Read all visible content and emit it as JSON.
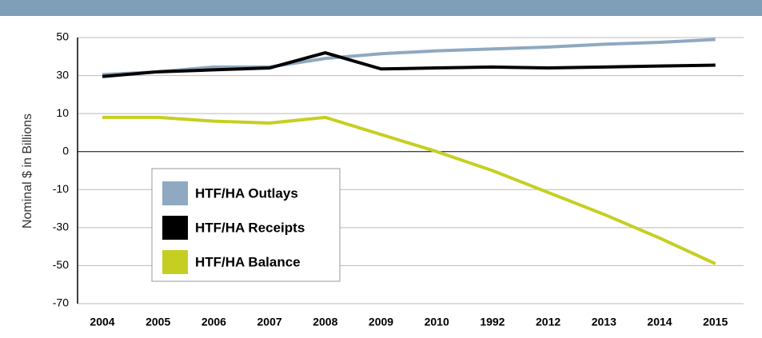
{
  "chart_data": {
    "type": "line",
    "y_label": "Nominal $ in Billions",
    "categories": [
      "2004",
      "2005",
      "2006",
      "2007",
      "2008",
      "2009",
      "2010",
      "1992",
      "2012",
      "2013",
      "2014",
      "2015"
    ],
    "series": [
      {
        "name": "HTF/HA Outlays",
        "color": "#8ea9c1",
        "values": [
          30.5,
          32,
          34.5,
          34.5,
          39,
          41.5,
          43,
          44,
          45,
          46.5,
          47.5,
          49
        ]
      },
      {
        "name": "HTF/HA Receipts",
        "color": "#000000",
        "values": [
          29.5,
          32,
          33,
          34,
          42,
          33.5,
          34,
          34.5,
          34,
          34.5,
          35,
          35.5
        ]
      },
      {
        "name": "HTF/HA Balance",
        "color": "#c5cf22",
        "values": [
          9,
          9,
          8,
          7.5,
          9,
          4.5,
          0,
          -5,
          -11.5,
          -23,
          -35.5,
          -49
        ]
      }
    ],
    "ylim": [
      -70,
      50
    ],
    "yticks": [
      50,
      30,
      10,
      0,
      -10,
      -30,
      -50,
      -70
    ],
    "grid": true
  }
}
